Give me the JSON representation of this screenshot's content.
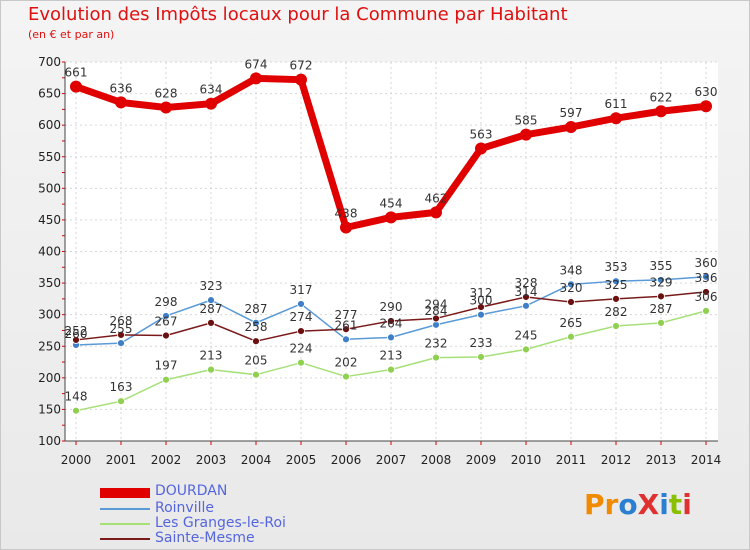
{
  "page": {
    "title": "Evolution des Impôts locaux pour la Commune par Habitant",
    "subtitle": "(en € et par an)",
    "logo_text": "ProXiti"
  },
  "colors": {
    "DOURDAN": "#e00000",
    "Roinville": "#5a9ad6",
    "Les Granges-le-Roi": "#a6e078",
    "Sainte-Mesme": "#7a1a1a"
  },
  "chart_data": {
    "type": "line",
    "title": "Evolution des Impôts locaux pour la Commune par Habitant",
    "subtitle": "(en € et par an)",
    "xlabel": "",
    "ylabel": "",
    "x": [
      "2000",
      "2001",
      "2002",
      "2003",
      "2004",
      "2005",
      "2006",
      "2007",
      "2008",
      "2009",
      "2010",
      "2011",
      "2012",
      "2013",
      "2014"
    ],
    "ylim": [
      100,
      700
    ],
    "yticks": [
      100,
      150,
      200,
      250,
      300,
      350,
      400,
      450,
      500,
      550,
      600,
      650,
      700
    ],
    "grid": true,
    "legend_position": "bottom-left",
    "series": [
      {
        "name": "DOURDAN",
        "values": [
          661,
          636,
          628,
          634,
          674,
          672,
          438,
          454,
          462,
          563,
          585,
          597,
          611,
          622,
          630
        ]
      },
      {
        "name": "Roinville",
        "values": [
          252,
          255,
          298,
          323,
          287,
          317,
          261,
          264,
          284,
          300,
          314,
          348,
          353,
          355,
          360
        ]
      },
      {
        "name": "Les Granges-le-Roi",
        "values": [
          148,
          163,
          197,
          213,
          205,
          224,
          202,
          213,
          232,
          233,
          245,
          265,
          282,
          287,
          306
        ]
      },
      {
        "name": "Sainte-Mesme",
        "values": [
          260,
          268,
          267,
          287,
          258,
          274,
          277,
          290,
          294,
          312,
          328,
          320,
          325,
          329,
          336
        ]
      }
    ]
  }
}
